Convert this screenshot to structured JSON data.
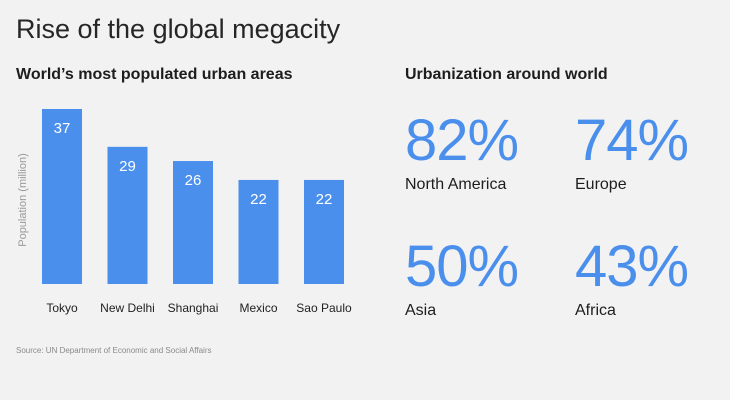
{
  "title": "Rise of the global megacity",
  "colors": {
    "bar": "#4b8fed",
    "accent_text": "#4b8fed",
    "background": "#f2f2f2"
  },
  "chart_data": {
    "type": "bar",
    "title": "World’s most populated urban areas",
    "ylabel": "Population (million)",
    "xlabel": "",
    "categories": [
      "Tokyo",
      "New Delhi",
      "Shanghai",
      "Mexico",
      "Sao Paulo"
    ],
    "values": [
      37,
      29,
      26,
      22,
      22
    ],
    "ylim": [
      0,
      37
    ],
    "grid": false,
    "data_labels": true
  },
  "urbanization": {
    "title": "Urbanization around world",
    "stats": [
      {
        "value": "82%",
        "label": "North America"
      },
      {
        "value": "74%",
        "label": "Europe"
      },
      {
        "value": "50%",
        "label": "Asia"
      },
      {
        "value": "43%",
        "label": "Africa"
      }
    ]
  },
  "source": "Source: UN Department of Economic and Social Affairs"
}
